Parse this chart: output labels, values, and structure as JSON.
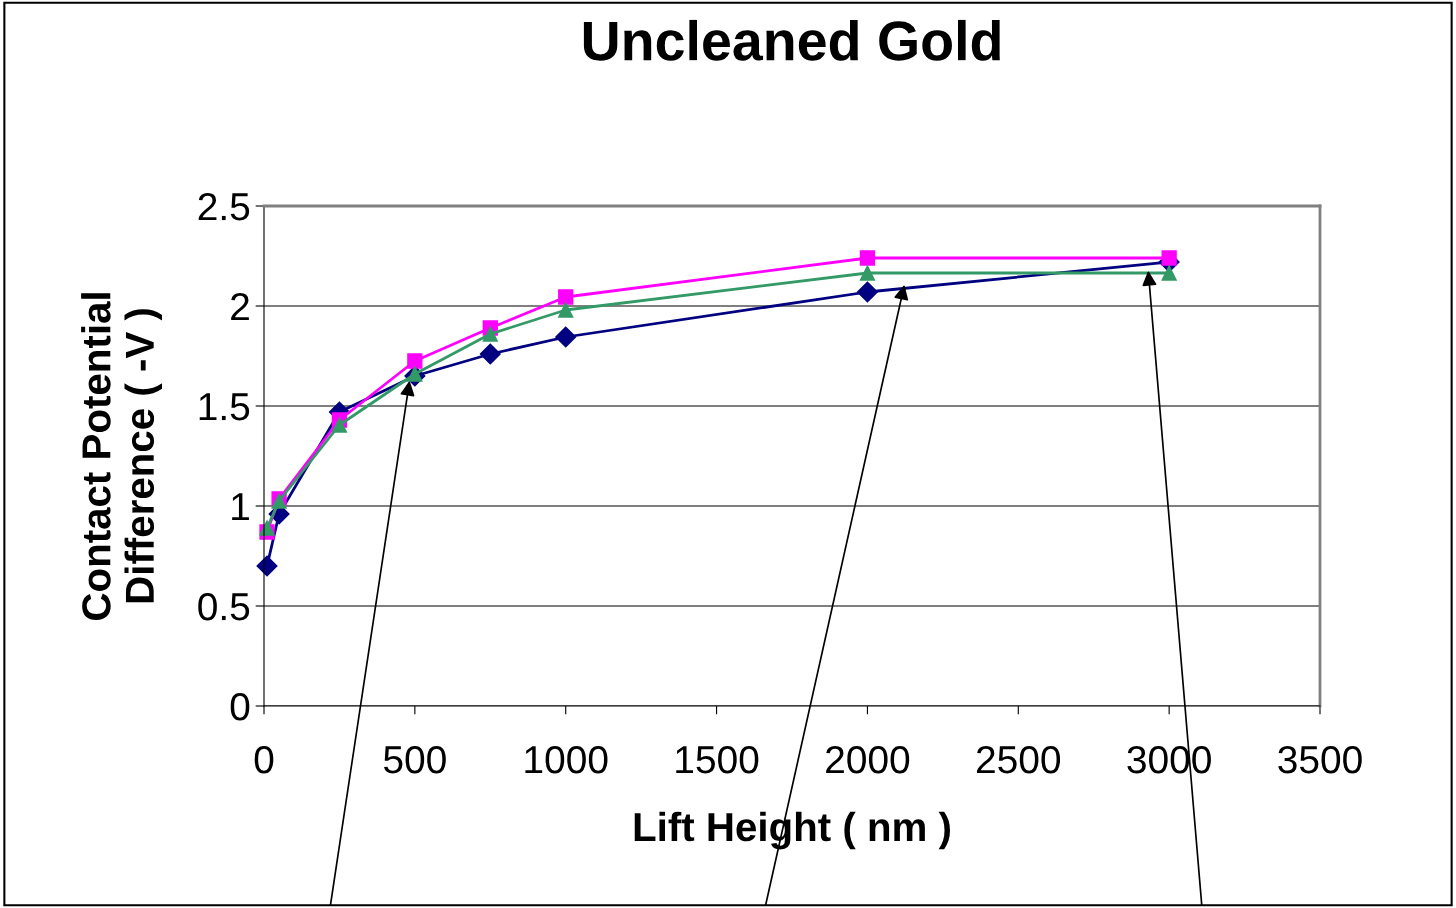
{
  "chart_data": {
    "type": "line",
    "title": "Uncleaned Gold",
    "xlabel": "Lift Height ( nm )",
    "ylabel": "Contact Potential\nDifference ( -V )",
    "x": [
      10,
      50,
      250,
      500,
      750,
      1000,
      2000,
      3000
    ],
    "series": [
      {
        "color": "#000080",
        "marker": "diamond",
        "values": [
          0.7,
          0.96,
          1.47,
          1.65,
          1.76,
          1.845,
          2.07,
          2.22
        ]
      },
      {
        "color": "#ff00ff",
        "marker": "square",
        "values": [
          0.87,
          1.035,
          1.43,
          1.725,
          1.89,
          2.045,
          2.24,
          2.24
        ]
      },
      {
        "color": "#339966",
        "marker": "triangle",
        "values": [
          0.89,
          1.025,
          1.405,
          1.66,
          1.86,
          1.98,
          2.165,
          2.165
        ]
      }
    ],
    "xlim": [
      0,
      3500
    ],
    "xticks": [
      0,
      500,
      1000,
      1500,
      2000,
      2500,
      3000,
      3500
    ],
    "ylim": [
      0,
      2.5
    ],
    "yticks": [
      0,
      0.5,
      1,
      1.5,
      2,
      2.5
    ],
    "grid": "y",
    "line_style": "solid"
  }
}
